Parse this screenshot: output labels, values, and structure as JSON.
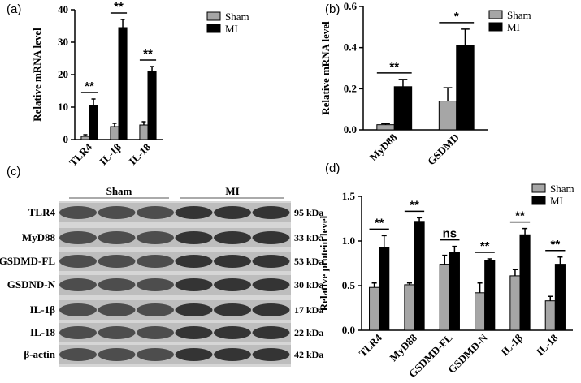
{
  "chart_data": [
    {
      "type": "bar",
      "panel_label": "(a)",
      "y_label": "Relative mRNA level",
      "categories": [
        "TLR4",
        "IL-1β",
        "IL-18"
      ],
      "series": [
        {
          "name": "Sham",
          "color": "#a6a6a6",
          "values": [
            1,
            4,
            4.5
          ],
          "errors": [
            0.5,
            1,
            1
          ]
        },
        {
          "name": "MI",
          "color": "#000000",
          "values": [
            10.5,
            34.5,
            21
          ],
          "errors": [
            2,
            2.5,
            1.5
          ]
        }
      ],
      "significance": [
        "**",
        "**",
        "**"
      ],
      "ylim": [
        0,
        40
      ],
      "yticks": [
        0,
        10,
        20,
        30,
        40
      ]
    },
    {
      "type": "bar",
      "panel_label": "(b)",
      "y_label": "Relative mRNA level",
      "categories": [
        "MyD88",
        "GSDMD"
      ],
      "series": [
        {
          "name": "Sham",
          "color": "#a6a6a6",
          "values": [
            0.025,
            0.14
          ],
          "errors": [
            0.005,
            0.065
          ]
        },
        {
          "name": "MI",
          "color": "#000000",
          "values": [
            0.21,
            0.41
          ],
          "errors": [
            0.035,
            0.08
          ]
        }
      ],
      "significance": [
        "**",
        "*"
      ],
      "ylim": [
        0,
        0.6
      ],
      "yticks": [
        {
          "value": 0,
          "label": "0.0"
        },
        0.2,
        0.4,
        0.6
      ]
    },
    {
      "type": "bar",
      "panel_label": "(d)",
      "y_label": "Relative protein level",
      "categories": [
        "TLR4",
        "MyD88",
        "GSDMD-FL",
        "GSDMD-N",
        "IL-1β",
        "IL-18"
      ],
      "series": [
        {
          "name": "Sham",
          "color": "#a6a6a6",
          "values": [
            0.48,
            0.51,
            0.74,
            0.42,
            0.61,
            0.33
          ],
          "errors": [
            0.05,
            0.02,
            0.1,
            0.11,
            0.07,
            0.05
          ]
        },
        {
          "name": "MI",
          "color": "#000000",
          "values": [
            0.93,
            1.22,
            0.87,
            0.78,
            1.07,
            0.74
          ],
          "errors": [
            0.13,
            0.04,
            0.07,
            0.02,
            0.07,
            0.08
          ]
        }
      ],
      "significance": [
        "**",
        "**",
        "ns",
        "**",
        "**",
        "**"
      ],
      "ylim": [
        0,
        1.5
      ],
      "yticks": [
        {
          "value": 0,
          "label": "0.0"
        },
        0.5,
        {
          "value": 1,
          "label": "1.0"
        },
        {
          "value": 1.5,
          "label": "1.5"
        }
      ]
    }
  ],
  "blot": {
    "panel_label": "(c)",
    "groups": [
      "Sham",
      "MI"
    ],
    "rows": [
      {
        "label": "TLR4",
        "size": "95 kDa"
      },
      {
        "label": "MyD88",
        "size": "33 kDa"
      },
      {
        "label": "GSDMD-FL",
        "size": "53 kDa"
      },
      {
        "label": "GSDND-N",
        "size": "30 kDa"
      },
      {
        "label": "IL-1β",
        "size": "17 kDa"
      },
      {
        "label": "IL-18",
        "size": "22 kDa"
      },
      {
        "label": "β-actin",
        "size": "42 kDa"
      }
    ]
  }
}
